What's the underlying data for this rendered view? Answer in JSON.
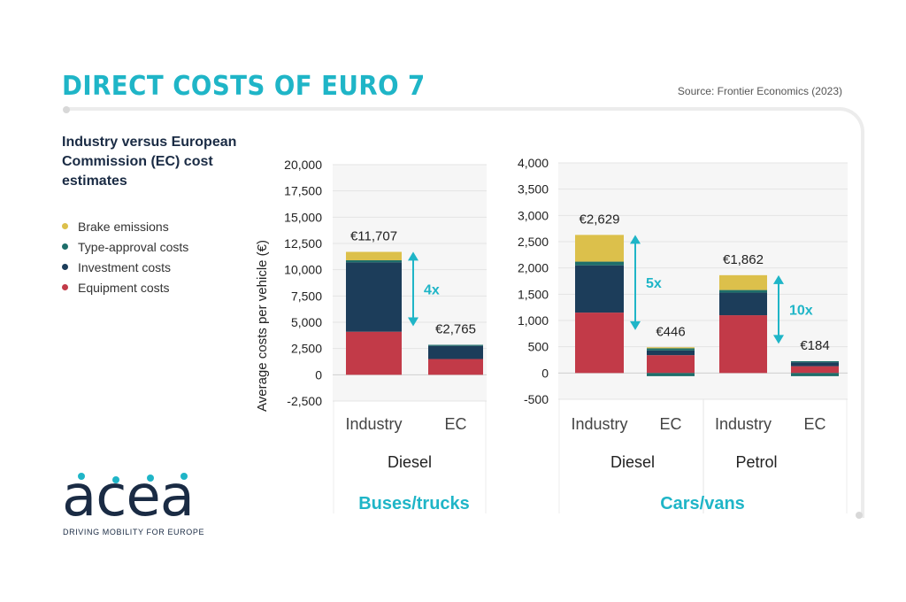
{
  "header": {
    "title": "DIRECT COSTS OF EURO 7",
    "source": "Source: Frontier Economics (2023)"
  },
  "subtitle": "Industry versus European Commission (EC) cost estimates",
  "legend": [
    {
      "label": "Brake emissions",
      "color": "#dcc04b"
    },
    {
      "label": "Type-approval costs",
      "color": "#1e6e6a"
    },
    {
      "label": "Investment costs",
      "color": "#1c3d5a"
    },
    {
      "label": "Equipment costs",
      "color": "#c23a48"
    }
  ],
  "logo": {
    "wordmark": "acea",
    "tagline": "DRIVING MOBILITY FOR EUROPE"
  },
  "chart_data": [
    {
      "type": "bar",
      "stacked": true,
      "ylabel": "Average costs per vehicle (€)",
      "ylim": [
        -2500,
        20000
      ],
      "yticks": [
        -2500,
        0,
        2500,
        5000,
        7500,
        10000,
        12500,
        15000,
        17500,
        20000
      ],
      "ytick_labels": [
        "-2,500",
        "0",
        "2,500",
        "5,000",
        "7,500",
        "10,000",
        "12,500",
        "15,000",
        "17,500",
        "20,000"
      ],
      "group_label": "Buses/trucks",
      "subgroups": [
        {
          "name": "Diesel",
          "bars": [
            {
              "category": "Industry",
              "total_label": "€11,707",
              "segments": {
                "Equipment costs": 4100,
                "Investment costs": 6600,
                "Type-approval costs": 200,
                "Brake emissions": 800
              }
            },
            {
              "category": "EC",
              "total_label": "€2,765",
              "segments": {
                "Equipment costs": 1500,
                "Investment costs": 1250,
                "Type-approval costs": 100,
                "Brake emissions": 0
              }
            }
          ],
          "annotation": {
            "label": "4x",
            "from": 11707,
            "to": 2765
          }
        }
      ]
    },
    {
      "type": "bar",
      "stacked": true,
      "ylabel": "",
      "ylim": [
        -500,
        4000
      ],
      "yticks": [
        -500,
        0,
        500,
        1000,
        1500,
        2000,
        2500,
        3000,
        3500,
        4000
      ],
      "ytick_labels": [
        "-500",
        "0",
        "500",
        "1,000",
        "1,500",
        "2,000",
        "2,500",
        "3,000",
        "3,500",
        "4,000"
      ],
      "group_label": "Cars/vans",
      "subgroups": [
        {
          "name": "Diesel",
          "bars": [
            {
              "category": "Industry",
              "total_label": "€2,629",
              "segments": {
                "Equipment costs": 1150,
                "Investment costs": 900,
                "Type-approval costs": 70,
                "Brake emissions": 509
              }
            },
            {
              "category": "EC",
              "total_label": "€446",
              "segments": {
                "Equipment costs": 340,
                "Investment costs": 90,
                "Type-approval costs": 40,
                "Brake emissions": 20,
                "Negative": -60
              }
            }
          ],
          "annotation": {
            "label": "5x",
            "from": 2629,
            "to": 446
          }
        },
        {
          "name": "Petrol",
          "bars": [
            {
              "category": "Industry",
              "total_label": "€1,862",
              "segments": {
                "Equipment costs": 1100,
                "Investment costs": 430,
                "Type-approval costs": 50,
                "Brake emissions": 282
              }
            },
            {
              "category": "EC",
              "total_label": "€184",
              "segments": {
                "Equipment costs": 130,
                "Investment costs": 75,
                "Type-approval costs": 20,
                "Brake emissions": 0,
                "Negative": -60
              }
            }
          ],
          "annotation": {
            "label": "10x",
            "from": 1862,
            "to": 184
          }
        }
      ]
    }
  ]
}
